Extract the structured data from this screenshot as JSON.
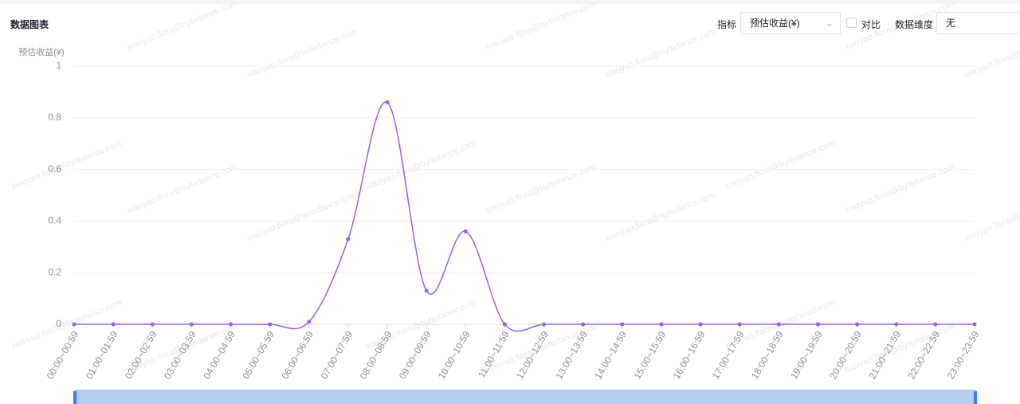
{
  "header": {
    "title": "数据图表",
    "metric_label": "指标",
    "metric_value": "预估收益(¥)",
    "compare_label": "对比",
    "dimension_label": "数据维度",
    "dimension_value": "无"
  },
  "watermark": "xiaoyao.flora@bytedance.com",
  "chart_data": {
    "type": "line",
    "y_label": "预估收益(¥)",
    "categories": [
      "00:00~00:59",
      "01:00~01:59",
      "02:00~02:59",
      "03:00~03:59",
      "04:00~04:59",
      "05:00~05:59",
      "06:00~06:59",
      "07:00~07:59",
      "08:00~08:59",
      "09:00~09:59",
      "10:00~10:59",
      "11:00~11:59",
      "12:00~12:59",
      "13:00~13:59",
      "14:00~14:59",
      "15:00~15:59",
      "16:00~16:59",
      "17:00~17:59",
      "18:00~18:59",
      "19:00~19:59",
      "20:00~20:59",
      "21:00~21:59",
      "22:00~22:59",
      "23:00~23:59"
    ],
    "values": [
      0,
      0,
      0,
      0,
      0,
      0,
      0.01,
      0.33,
      0.86,
      0.13,
      0.36,
      0,
      0,
      0,
      0,
      0,
      0,
      0,
      0,
      0,
      0,
      0,
      0,
      0
    ],
    "color": "#9b5de5",
    "ylim": [
      0,
      1
    ],
    "yticks": [
      0,
      0.2,
      0.4,
      0.6,
      0.8,
      1
    ],
    "grid": true,
    "smooth": true
  }
}
